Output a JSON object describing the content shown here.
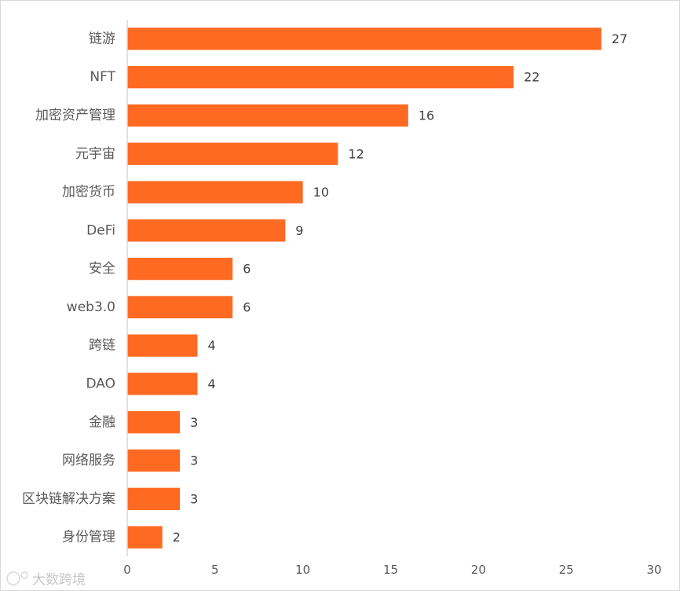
{
  "chart_data": {
    "type": "bar",
    "orientation": "horizontal",
    "categories": [
      "链游",
      "NFT",
      "加密资产管理",
      "元宇宙",
      "加密货币",
      "DeFi",
      "安全",
      "web3.0",
      "跨链",
      "DAO",
      "金融",
      "网络服务",
      "区块链解决方案",
      "身份管理"
    ],
    "values": [
      27,
      22,
      16,
      12,
      10,
      9,
      6,
      6,
      4,
      4,
      3,
      3,
      3,
      2
    ],
    "xlim": [
      0,
      30
    ],
    "xticks": [
      0,
      5,
      10,
      15,
      20,
      25,
      30
    ],
    "title": "",
    "xlabel": "",
    "ylabel": "",
    "grid": false,
    "data_labels": true,
    "bar_color": "#FF6A22",
    "axis_color": "#d9d9d9"
  },
  "watermark": {
    "text": "大数跨境"
  }
}
